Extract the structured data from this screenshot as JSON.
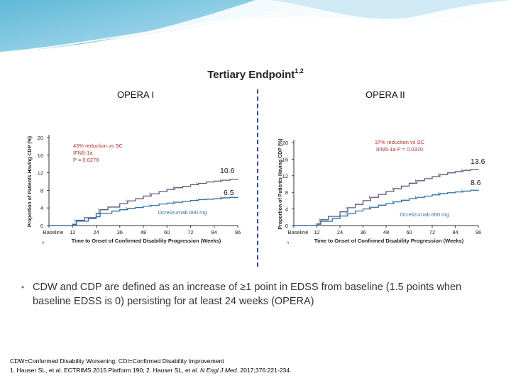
{
  "slide": {
    "title": "Tertiary Endpoint",
    "title_sup": "1,2",
    "colors": {
      "accent": "#2f4f8f",
      "banner": "#6ec0dc",
      "series_ocrelizumab": "#2f6fa8",
      "series_ifn": "#5a5a78"
    }
  },
  "panels": [
    {
      "name": "OPERA I"
    },
    {
      "name": "OPERA II"
    }
  ],
  "bullet": {
    "text": "CDW and CDP are defined as an increase of ≥1 point in EDSS from baseline (1.5 points when baseline EDSS is 0) persisting for at least 24 weeks (OPERA)"
  },
  "footnotes": {
    "line1": "CDW=Conformed Disability Worsening; CDI=Confirmed Disability Improvement",
    "line2_a": "1. Hauser SL, et al. ECTRIMS 2015 Platform 190; 2. Hauser SL, et al. ",
    "line2_journal": "N Engl J Med",
    "line2_b": ". 2017;376:221-234."
  },
  "chart_data": [
    {
      "type": "line",
      "title": "OPERA I",
      "xlabel": "Time to Onset of Confirmed Disability Progression (Weeks)",
      "ylabel": "Proportion of Patients Having CDP (%)",
      "xlim": [
        0,
        96
      ],
      "ylim": [
        0,
        20
      ],
      "x_ticks": [
        0,
        12,
        24,
        36,
        48,
        60,
        72,
        84,
        96
      ],
      "x_tick_labels": [
        "Baseline",
        "12",
        "24",
        "36",
        "48",
        "60",
        "72",
        "84",
        "96"
      ],
      "y_ticks": [
        0,
        4,
        8,
        12,
        16,
        20
      ],
      "annotation": "43% reduction vs SC IFNß-1a P = 0.0278",
      "annotation_lines": [
        "43% reduction vs SC",
        "IFNß-1a",
        "P = 0.0278"
      ],
      "series_label": "Ocrelizumab 600 mg",
      "n_label": "n",
      "series": [
        {
          "name": "SC IFNß-1a",
          "final_value": 10.6,
          "final_label": "10.6",
          "x": [
            0,
            12,
            14,
            18,
            24,
            26,
            30,
            36,
            40,
            44,
            48,
            52,
            56,
            60,
            64,
            68,
            72,
            76,
            80,
            84,
            88,
            92,
            96
          ],
          "y": [
            0,
            0.3,
            1.2,
            1.8,
            2.8,
            3.6,
            4.2,
            5.0,
            5.6,
            6.1,
            6.7,
            7.2,
            7.7,
            8.2,
            8.6,
            8.9,
            9.3,
            9.6,
            9.9,
            10.1,
            10.3,
            10.5,
            10.6
          ]
        },
        {
          "name": "Ocrelizumab 600 mg",
          "final_value": 6.5,
          "final_label": "6.5",
          "x": [
            0,
            12,
            14,
            20,
            24,
            26,
            32,
            36,
            40,
            44,
            48,
            52,
            56,
            60,
            64,
            68,
            72,
            76,
            80,
            84,
            88,
            92,
            96
          ],
          "y": [
            0,
            0.2,
            1.0,
            1.6,
            2.0,
            2.8,
            3.3,
            3.6,
            3.9,
            4.1,
            4.4,
            4.6,
            4.9,
            5.1,
            5.3,
            5.5,
            5.7,
            5.9,
            6.0,
            6.1,
            6.3,
            6.4,
            6.5
          ]
        }
      ]
    },
    {
      "type": "line",
      "title": "OPERA II",
      "xlabel": "Time to Onset of Confirmed Disability Progression (Weeks)",
      "ylabel": "Proportion of Patients Having CDP (%)",
      "xlim": [
        0,
        96
      ],
      "ylim": [
        0,
        20
      ],
      "x_ticks": [
        0,
        12,
        24,
        36,
        48,
        60,
        72,
        84,
        96
      ],
      "x_tick_labels": [
        "Baseline",
        "12",
        "24",
        "36",
        "48",
        "60",
        "72",
        "84",
        "96"
      ],
      "y_ticks": [
        0,
        4,
        8,
        12,
        16,
        20
      ],
      "annotation": "37% reduction vs SC IFNß-1a P = 0.0370",
      "annotation_lines": [
        "37% reduction vs SC",
        "IFNß-1a P = 0.0370"
      ],
      "series_label": "Ocrelizumab 600 mg",
      "n_label": "n",
      "series": [
        {
          "name": "SC IFNß-1a",
          "final_value": 13.6,
          "final_label": "13.6",
          "x": [
            0,
            12,
            14,
            18,
            24,
            28,
            32,
            36,
            40,
            44,
            48,
            52,
            56,
            60,
            64,
            68,
            72,
            76,
            80,
            84,
            88,
            92,
            96
          ],
          "y": [
            0,
            0.4,
            1.4,
            2.2,
            3.3,
            4.3,
            5.1,
            6.0,
            6.8,
            7.5,
            8.2,
            8.9,
            9.5,
            10.2,
            10.8,
            11.3,
            11.8,
            12.3,
            12.7,
            13.0,
            13.3,
            13.5,
            13.6
          ]
        },
        {
          "name": "Ocrelizumab 600 mg",
          "final_value": 8.6,
          "final_label": "8.6",
          "x": [
            0,
            12,
            14,
            20,
            24,
            28,
            32,
            36,
            40,
            44,
            48,
            52,
            56,
            60,
            64,
            68,
            72,
            76,
            80,
            84,
            88,
            92,
            96
          ],
          "y": [
            0,
            0.3,
            1.0,
            1.7,
            2.3,
            2.9,
            3.5,
            4.0,
            4.4,
            4.9,
            5.3,
            5.7,
            6.1,
            6.5,
            6.8,
            7.1,
            7.4,
            7.7,
            7.9,
            8.1,
            8.3,
            8.5,
            8.6
          ]
        }
      ]
    }
  ]
}
